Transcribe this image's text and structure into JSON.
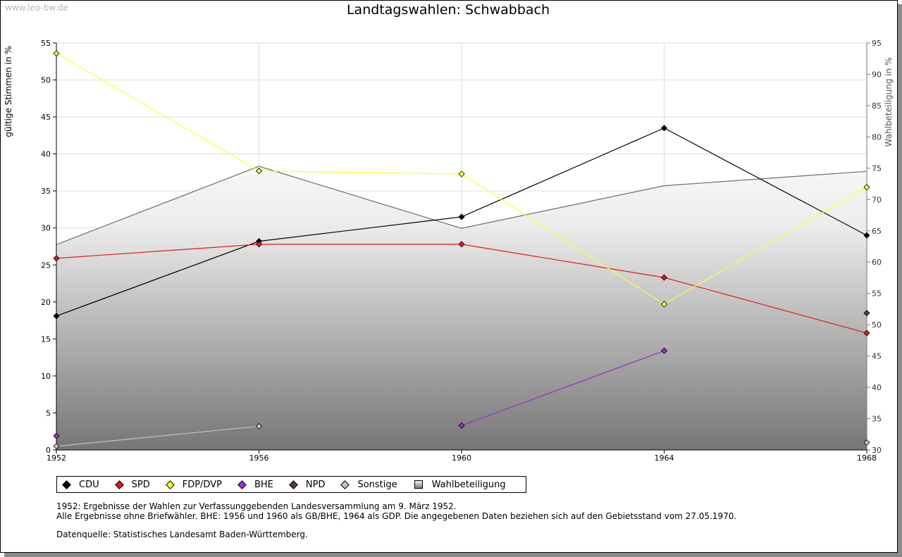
{
  "watermark": "www.leo-bw.de",
  "title": "Landtagswahlen: Schwabbach",
  "chart_data": {
    "type": "line",
    "title": "Landtagswahlen: Schwabbach",
    "categories": [
      "1952",
      "1956",
      "1960",
      "1964",
      "1968"
    ],
    "x": [
      1952,
      1956,
      1960,
      1964,
      1968
    ],
    "xlim": [
      1952,
      1968
    ],
    "ylabel": "gültige Stimmen in %",
    "ylim": [
      0,
      55
    ],
    "yticks": [
      0,
      5,
      10,
      15,
      20,
      25,
      30,
      35,
      40,
      45,
      50,
      55
    ],
    "y2label": "Wahlbeteiligung in %",
    "y2lim": [
      30,
      95
    ],
    "y2ticks": [
      30,
      35,
      40,
      45,
      50,
      55,
      60,
      65,
      70,
      75,
      80,
      85,
      90,
      95
    ],
    "grid": true,
    "legend_position": "bottom",
    "series": [
      {
        "name": "CDU",
        "color": "#000000",
        "values": [
          18.1,
          28.2,
          31.5,
          43.5,
          29.0
        ]
      },
      {
        "name": "SPD",
        "color": "#e41a1c",
        "values": [
          25.9,
          27.8,
          27.8,
          23.3,
          15.8
        ]
      },
      {
        "name": "FDP/DVP",
        "color": "#ffff33",
        "values": [
          53.6,
          37.7,
          37.3,
          19.7,
          35.5
        ]
      },
      {
        "name": "BHE",
        "color": "#9932cc",
        "values": [
          1.9,
          null,
          3.3,
          13.4,
          null
        ]
      },
      {
        "name": "NPD",
        "color": "#5a3f2e",
        "values": [
          null,
          null,
          null,
          null,
          18.5
        ]
      },
      {
        "name": "Sonstige",
        "color": "#c0c0c0",
        "values": [
          0.5,
          3.2,
          null,
          null,
          1.0
        ]
      }
    ],
    "area": {
      "name": "Wahlbeteiligung",
      "axis": "right",
      "values": [
        62.8,
        75.3,
        65.4,
        72.2,
        74.5
      ]
    }
  },
  "legend": [
    "CDU",
    "SPD",
    "FDP/DVP",
    "BHE",
    "NPD",
    "Sonstige",
    "Wahlbeteiligung"
  ],
  "notes": [
    "1952: Ergebnisse der Wahlen zur Verfassunggebenden Landesversammlung am 9. März 1952.",
    "Alle Ergebnisse ohne Briefwähler. BHE: 1956 und 1960 als GB/BHE, 1964 als GDP. Die angegebenen Daten beziehen sich auf den Gebietsstand vom 27.05.1970."
  ],
  "source": "Datenquelle: Statistisches Landesamt Baden-Württemberg."
}
